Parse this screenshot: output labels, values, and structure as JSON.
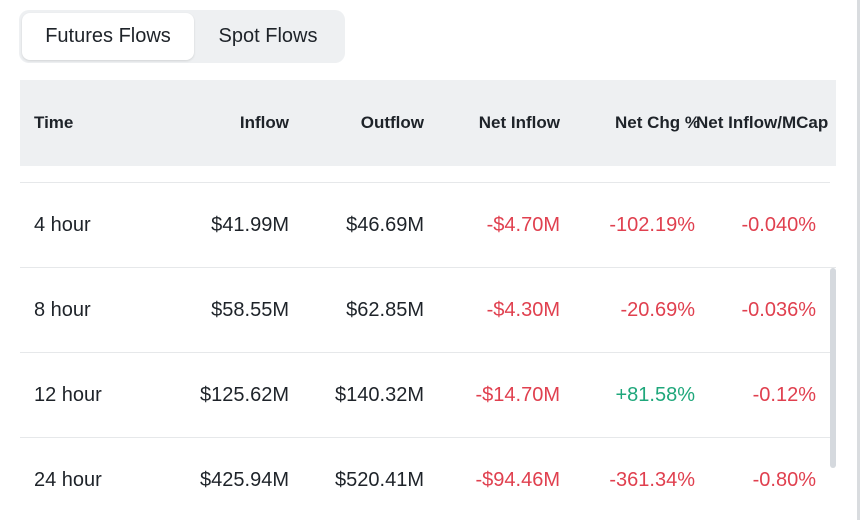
{
  "tabs": [
    {
      "label": "Futures Flows",
      "active": true
    },
    {
      "label": "Spot Flows",
      "active": false
    }
  ],
  "table": {
    "headers": [
      "Time",
      "Inflow",
      "Outflow",
      "Net Inflow",
      "Net Chg %",
      "Net Inflow/MCap"
    ],
    "rows": [
      {
        "time": "4 hour",
        "inflow": "$41.99M",
        "outflow": "$46.69M",
        "net_inflow": "-$4.70M",
        "net_chg": "-102.19%",
        "net_mcap": "-0.040%"
      },
      {
        "time": "8 hour",
        "inflow": "$58.55M",
        "outflow": "$62.85M",
        "net_inflow": "-$4.30M",
        "net_chg": "-20.69%",
        "net_mcap": "-0.036%"
      },
      {
        "time": "12 hour",
        "inflow": "$125.62M",
        "outflow": "$140.32M",
        "net_inflow": "-$14.70M",
        "net_chg": "+81.58%",
        "net_mcap": "-0.12%"
      },
      {
        "time": "24 hour",
        "inflow": "$425.94M",
        "outflow": "$520.41M",
        "net_inflow": "-$94.46M",
        "net_chg": "-361.34%",
        "net_mcap": "-0.80%"
      }
    ]
  },
  "colors": {
    "negative": "#e0404f",
    "positive": "#1fa77b",
    "header_bg": "#eef0f2"
  }
}
